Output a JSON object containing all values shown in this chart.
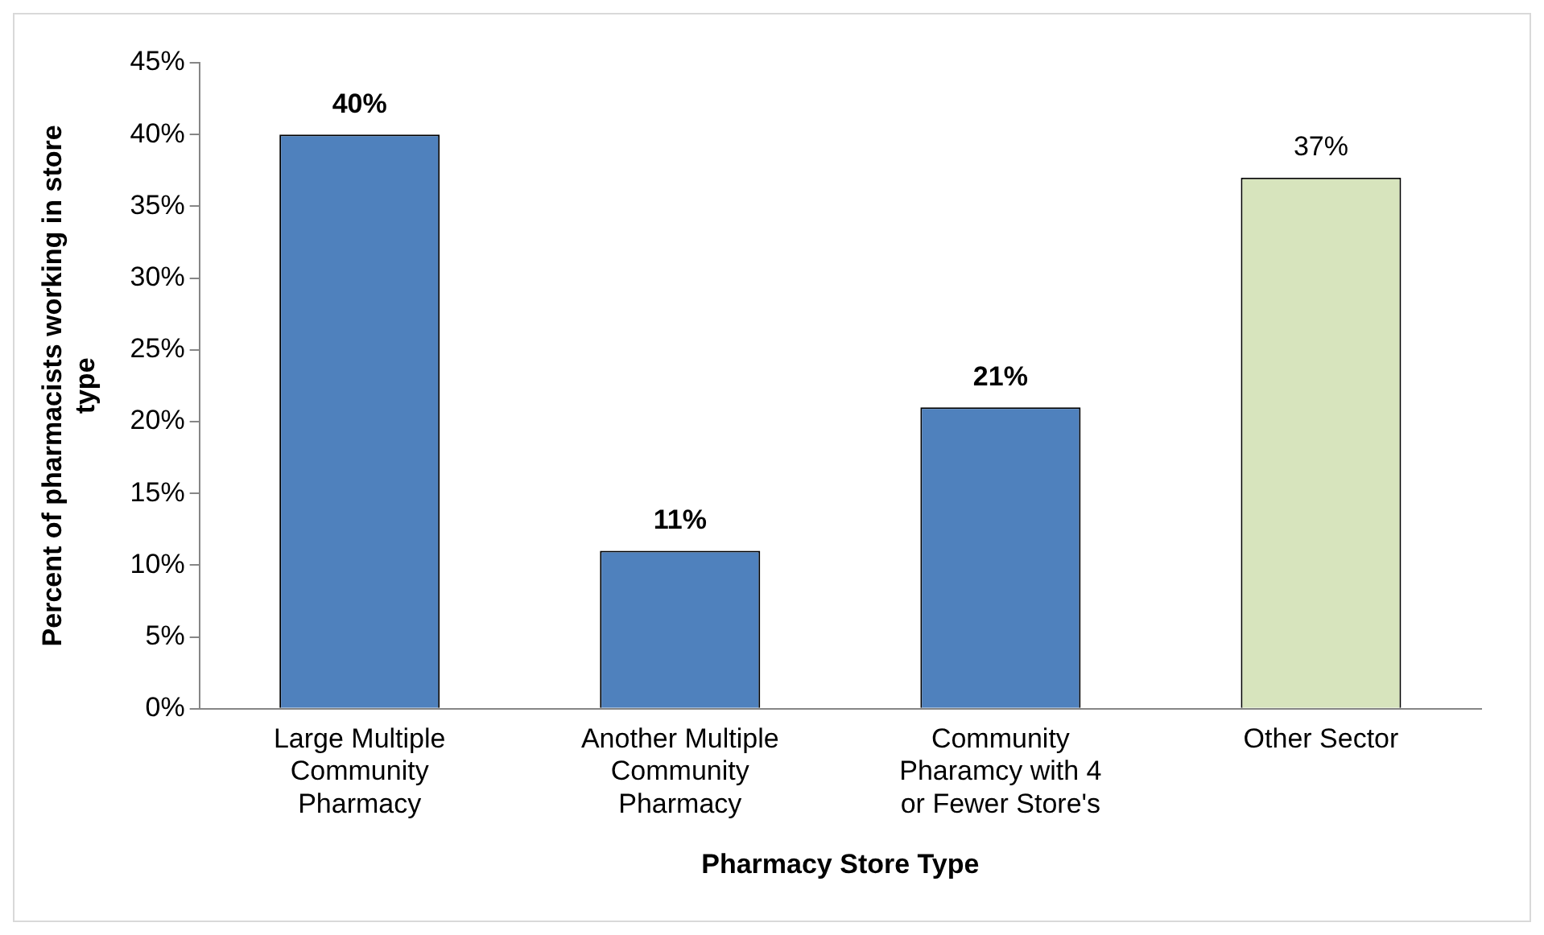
{
  "chart_data": {
    "type": "bar",
    "xlabel": "Pharmacy Store Type",
    "ylabel": "Percent of pharmacists working in store type",
    "categories": [
      "Large Multiple Community Pharmacy",
      "Another Multiple Community Pharmacy",
      "Community Pharamcy with 4 or Fewer Store's",
      "Other Sector"
    ],
    "values": [
      40,
      11,
      21,
      37
    ],
    "colors": [
      "#4f81bd",
      "#4f81bd",
      "#4f81bd",
      "#d7e4bd"
    ],
    "value_labels": [
      "40%",
      "11%",
      "21%",
      "37%"
    ],
    "ylim": [
      0,
      45
    ],
    "yticks": [
      {
        "value": 0,
        "label": "0%"
      },
      {
        "value": 5,
        "label": "5%"
      },
      {
        "value": 10,
        "label": "10%"
      },
      {
        "value": 15,
        "label": "15%"
      },
      {
        "value": 20,
        "label": "20%"
      },
      {
        "value": 25,
        "label": "25%"
      },
      {
        "value": 30,
        "label": "30%"
      },
      {
        "value": 35,
        "label": "35%"
      },
      {
        "value": 40,
        "label": "40%"
      },
      {
        "value": 45,
        "label": "45%"
      }
    ],
    "grid": false,
    "legend": false
  }
}
